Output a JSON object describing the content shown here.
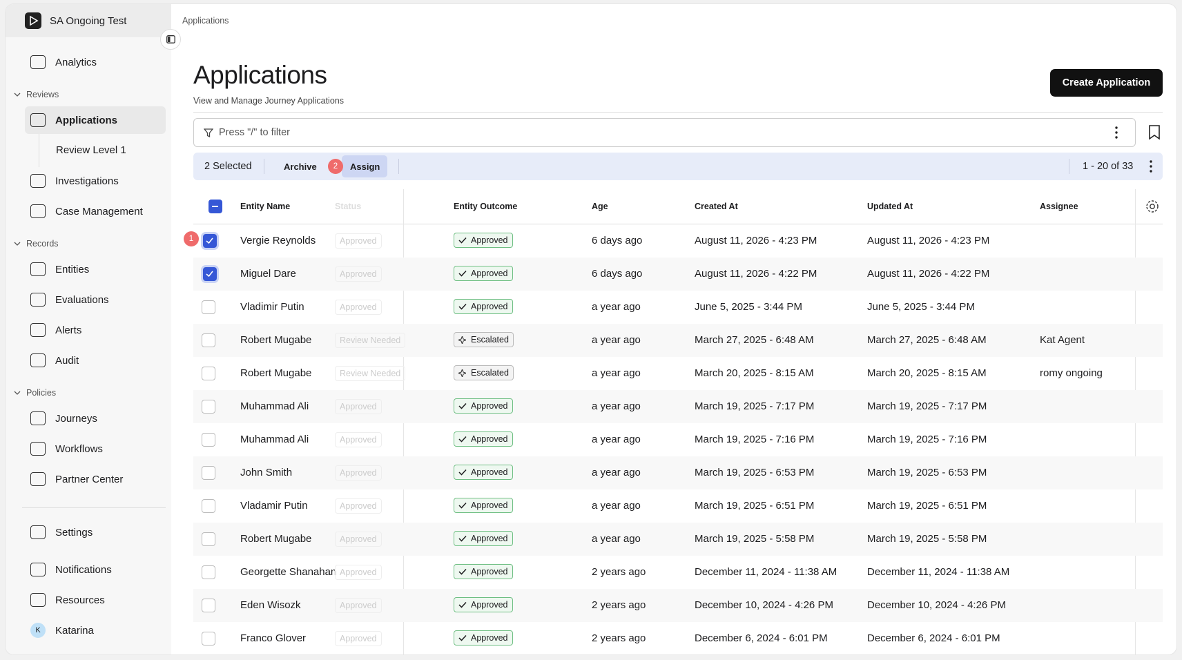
{
  "sidebar": {
    "workspace": "SA Ongoing Test",
    "top": [
      "Analytics"
    ],
    "sections": [
      {
        "title": "Reviews",
        "items": [
          "Applications",
          "Investigations",
          "Case Management"
        ],
        "sub_items": [
          "Review Level 1"
        ]
      },
      {
        "title": "Records",
        "items": [
          "Entities",
          "Evaluations",
          "Alerts",
          "Audit"
        ]
      },
      {
        "title": "Policies",
        "items": [
          "Journeys",
          "Workflows",
          "Partner Center"
        ]
      }
    ],
    "bottom": [
      "Settings",
      "Notifications",
      "Resources"
    ],
    "user": {
      "initial": "K",
      "name": "Katarina"
    }
  },
  "breadcrumb": "Applications",
  "header": {
    "title": "Applications",
    "subtitle": "View and Manage Journey Applications",
    "button": "Create Application"
  },
  "filter": {
    "placeholder": "Press \"/\" to filter"
  },
  "selection_bar": {
    "selected": "2 Selected",
    "archive": "Archive",
    "assign": "Assign",
    "assign_badge": "2",
    "pagination": "1 - 20 of 33"
  },
  "row_badge": "1",
  "table": {
    "columns": [
      "Entity Name",
      "Status",
      "Entity Outcome",
      "Age",
      "Created At",
      "Updated At",
      "Assignee"
    ],
    "rows": [
      {
        "checked": true,
        "cells": [
          "Vergie Reynolds",
          "Approved",
          "Approved",
          "6 days ago",
          "August 11, 2026 - 4:23 PM",
          "August 11, 2026 - 4:23 PM",
          ""
        ]
      },
      {
        "checked": true,
        "cells": [
          "Miguel Dare",
          "Approved",
          "Approved",
          "6 days ago",
          "August 11, 2026 - 4:22 PM",
          "August 11, 2026 - 4:22 PM",
          ""
        ]
      },
      {
        "checked": false,
        "cells": [
          "Vladimir Putin",
          "Approved",
          "Approved",
          "a year ago",
          "June 5, 2025 - 3:44 PM",
          "June 5, 2025 - 3:44 PM",
          ""
        ]
      },
      {
        "checked": false,
        "cells": [
          "Robert Mugabe",
          "Review Needed",
          "Escalated",
          "a year ago",
          "March 27, 2025 - 6:48 AM",
          "March 27, 2025 - 6:48 AM",
          "Kat Agent"
        ]
      },
      {
        "checked": false,
        "cells": [
          "Robert Mugabe",
          "Review Needed",
          "Escalated",
          "a year ago",
          "March 20, 2025 - 8:15 AM",
          "March 20, 2025 - 8:15 AM",
          "romy ongoing"
        ]
      },
      {
        "checked": false,
        "cells": [
          "Muhammad Ali",
          "Approved",
          "Approved",
          "a year ago",
          "March 19, 2025 - 7:17 PM",
          "March 19, 2025 - 7:17 PM",
          ""
        ]
      },
      {
        "checked": false,
        "cells": [
          "Muhammad Ali",
          "Approved",
          "Approved",
          "a year ago",
          "March 19, 2025 - 7:16 PM",
          "March 19, 2025 - 7:16 PM",
          ""
        ]
      },
      {
        "checked": false,
        "cells": [
          "John Smith",
          "Approved",
          "Approved",
          "a year ago",
          "March 19, 2025 - 6:53 PM",
          "March 19, 2025 - 6:53 PM",
          ""
        ]
      },
      {
        "checked": false,
        "cells": [
          "Vladamir Putin",
          "Approved",
          "Approved",
          "a year ago",
          "March 19, 2025 - 6:51 PM",
          "March 19, 2025 - 6:51 PM",
          ""
        ]
      },
      {
        "checked": false,
        "cells": [
          "Robert Mugabe",
          "Approved",
          "Approved",
          "a year ago",
          "March 19, 2025 - 5:58 PM",
          "March 19, 2025 - 5:58 PM",
          ""
        ]
      },
      {
        "checked": false,
        "cells": [
          "Georgette Shanahan",
          "Approved",
          "Approved",
          "2 years ago",
          "December 11, 2024 - 11:38 AM",
          "December 11, 2024 - 11:38 AM",
          ""
        ]
      },
      {
        "checked": false,
        "cells": [
          "Eden Wisozk",
          "Approved",
          "Approved",
          "2 years ago",
          "December 10, 2024 - 4:26 PM",
          "December 10, 2024 - 4:26 PM",
          ""
        ]
      },
      {
        "checked": false,
        "cells": [
          "Franco Glover",
          "Approved",
          "Approved",
          "2 years ago",
          "December 6, 2024 - 6:01 PM",
          "December 6, 2024 - 6:01 PM",
          ""
        ]
      }
    ]
  }
}
